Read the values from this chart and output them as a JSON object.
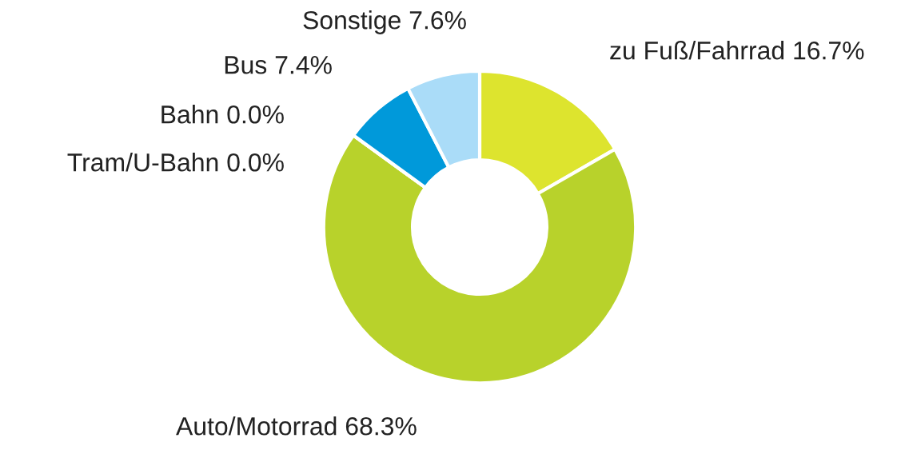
{
  "chart_data": {
    "type": "donut",
    "categories": [
      "zu Fuß/Fahrrad",
      "Auto/Motorrad",
      "Tram/U-Bahn",
      "Bahn",
      "Bus",
      "Sonstige"
    ],
    "values": [
      16.7,
      68.3,
      0.0,
      0.0,
      7.4,
      7.6
    ],
    "value_labels": [
      "16.7%",
      "68.3%",
      "0.0%",
      "0.0%",
      "7.4%",
      "7.6%"
    ],
    "colors": [
      "#dde42e",
      "#b8d22b",
      "#6b8e23",
      "#006fa6",
      "#0099da",
      "#aadcf8"
    ],
    "legend": false
  }
}
